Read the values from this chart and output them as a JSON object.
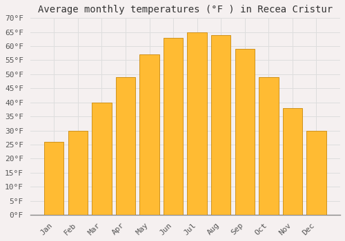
{
  "title": "Average monthly temperatures (°F ) in Recea Cristur",
  "months": [
    "Jan",
    "Feb",
    "Mar",
    "Apr",
    "May",
    "Jun",
    "Jul",
    "Aug",
    "Sep",
    "Oct",
    "Nov",
    "Dec"
  ],
  "values": [
    26,
    30,
    40,
    49,
    57,
    63,
    65,
    64,
    59,
    49,
    38,
    30
  ],
  "bar_color_top": "#FFBB33",
  "bar_color_bottom": "#F5A800",
  "bar_edge_color": "#C8880A",
  "background_color": "#F5F0F0",
  "plot_bg_color": "#F5F0F0",
  "ylim": [
    0,
    70
  ],
  "ytick_step": 5,
  "ylabel_suffix": "°F",
  "grid_color": "#DDDDDD",
  "title_fontsize": 10,
  "tick_fontsize": 8,
  "bar_width": 0.82
}
